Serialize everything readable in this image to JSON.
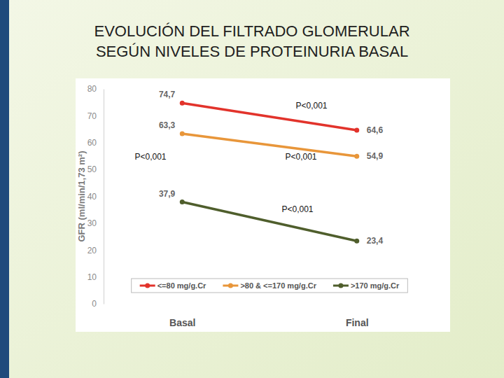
{
  "chart_data": {
    "type": "line",
    "title": "EVOLUCIÓN DEL FILTRADO GLOMERULAR SEGÚN NIVELES DE PROTEINURIA BASAL",
    "y_label": "GFR (ml/min/1,73 m²)",
    "categories": [
      "Basal",
      "Final"
    ],
    "series": [
      {
        "name": "<=80 mg/g.Cr",
        "color": "#e2332b",
        "values": [
          74.7,
          64.6
        ],
        "value_labels": [
          "74,7",
          "64,6"
        ]
      },
      {
        "name": ">80 & <=170 mg/g.Cr",
        "color": "#e8963a",
        "values": [
          63.3,
          54.9
        ],
        "value_labels": [
          "63,3",
          "54,9"
        ]
      },
      {
        "name": ">170 mg/g.Cr",
        "color": "#4f5e2c",
        "values": [
          37.9,
          23.4
        ],
        "value_labels": [
          "37,9",
          "23,4"
        ]
      }
    ],
    "annotations": [
      "P<0,001",
      "P<0,001",
      "P<0,001",
      "P<0,001"
    ],
    "ylim": [
      0,
      80
    ],
    "yticks": [
      0,
      10,
      20,
      30,
      40,
      50,
      60,
      70,
      80
    ],
    "grid": false,
    "legend": "bottom",
    "data_labels": true,
    "marker": "circle",
    "line_style": "solid"
  }
}
